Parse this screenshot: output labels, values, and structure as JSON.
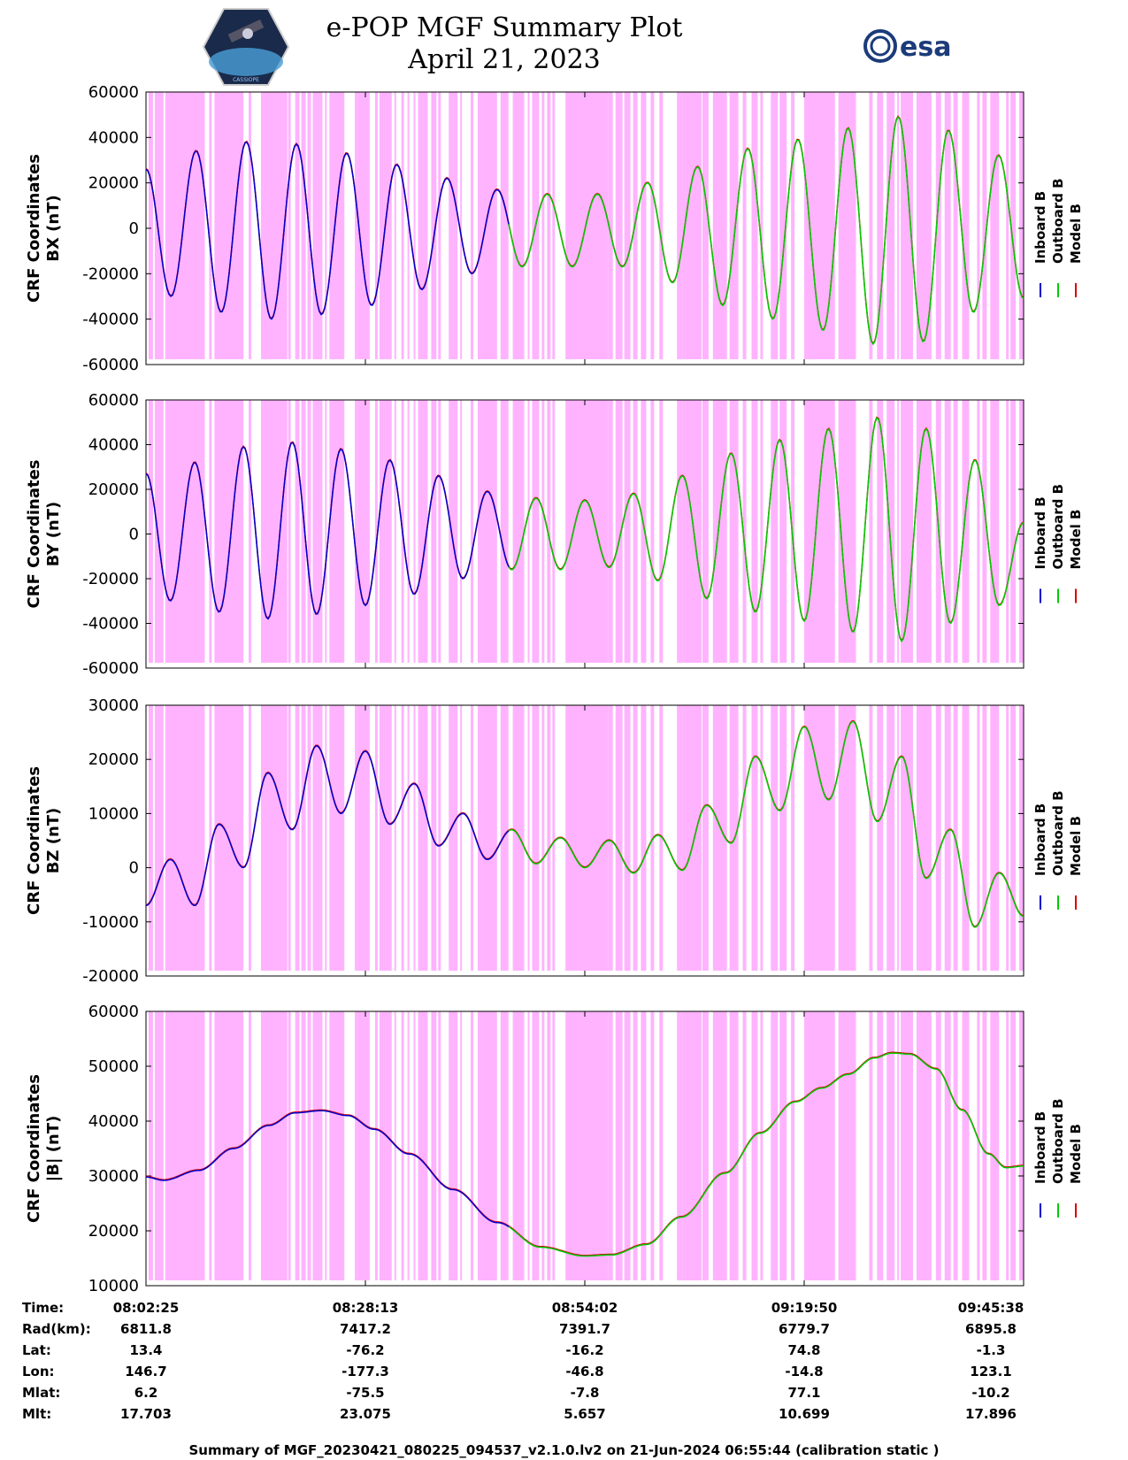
{
  "header": {
    "title_line1": "e-POP MGF Summary Plot",
    "title_line2": "April 21, 2023",
    "logo_left_text": "CASSIOPE",
    "logo_right_text": "esa"
  },
  "colors": {
    "inboard": "#0000cc",
    "outboard": "#00cc00",
    "model": "#dd0000",
    "shade": "#ffb3ff"
  },
  "chart_data": [
    {
      "type": "line",
      "ylabel": "CRF Coordinates\nBX (nT)",
      "ylabel_line1": "CRF Coordinates",
      "ylabel_line2": "BX (nT)",
      "ylim": [
        -60000,
        60000
      ],
      "yticks": [
        "60000",
        "40000",
        "20000",
        "0",
        "-20000",
        "-40000",
        "-60000"
      ],
      "legend": [
        "Inboard B",
        "Outboard B",
        "Model B"
      ],
      "series_note": "oscillating field; inboard (blue) to ~08:40 then outboard (green)",
      "peaks": [
        26000,
        -30000,
        34000,
        -37000,
        38000,
        -40000,
        37000,
        -38000,
        33000,
        -34000,
        28000,
        -27000,
        22000,
        -20000,
        17000,
        -17000,
        15000,
        -17000,
        15000,
        -17000,
        20000,
        -24000,
        27000,
        -34000,
        35000,
        -40000,
        39000,
        -45000,
        44000,
        -51000,
        49000,
        -50000,
        43000,
        -37000,
        32000,
        -31000
      ]
    },
    {
      "type": "line",
      "ylabel": "CRF Coordinates\nBY (nT)",
      "ylabel_line1": "CRF Coordinates",
      "ylabel_line2": "BY (nT)",
      "ylim": [
        -60000,
        60000
      ],
      "yticks": [
        "60000",
        "40000",
        "20000",
        "0",
        "-20000",
        "-40000",
        "-60000"
      ],
      "legend": [
        "Inboard B",
        "Outboard B",
        "Model B"
      ],
      "peaks": [
        27000,
        -30000,
        32000,
        -35000,
        39000,
        -38000,
        41000,
        -36000,
        38000,
        -32000,
        33000,
        -27000,
        26000,
        -20000,
        19000,
        -16000,
        16000,
        -16000,
        15000,
        -15000,
        18000,
        -21000,
        26000,
        -29000,
        36000,
        -35000,
        42000,
        -39000,
        47000,
        -44000,
        52000,
        -48000,
        47000,
        -40000,
        33000,
        -32000,
        5000
      ]
    },
    {
      "type": "line",
      "ylabel": "CRF Coordinates\nBZ (nT)",
      "ylabel_line1": "CRF Coordinates",
      "ylabel_line2": "BZ (nT)",
      "ylim": [
        -20000,
        30000
      ],
      "yticks": [
        "30000",
        "20000",
        "10000",
        "0",
        "-10000",
        "-20000"
      ],
      "legend": [
        "Inboard B",
        "Outboard B",
        "Model B"
      ],
      "peaks": [
        -7000,
        1500,
        -7000,
        8000,
        0,
        17500,
        7000,
        22500,
        10000,
        21500,
        8000,
        15500,
        4000,
        10000,
        1500,
        7000,
        700,
        5500,
        0,
        5000,
        -1000,
        6000,
        -500,
        11500,
        4500,
        20500,
        10500,
        26000,
        12500,
        27000,
        8500,
        20500,
        -2000,
        7000,
        -11000,
        -1000,
        -9000
      ]
    },
    {
      "type": "line",
      "ylabel": "CRF Coordinates\n|B| (nT)",
      "ylabel_line1": "CRF Coordinates",
      "ylabel_line2": "|B| (nT)",
      "ylim": [
        10000,
        60000
      ],
      "yticks": [
        "60000",
        "50000",
        "40000",
        "30000",
        "20000",
        "10000"
      ],
      "legend": [
        "Inboard B",
        "Outboard B",
        "Model B"
      ],
      "curve_points": [
        [
          0,
          29800
        ],
        [
          0.02,
          29200
        ],
        [
          0.06,
          31000
        ],
        [
          0.1,
          35000
        ],
        [
          0.14,
          39200
        ],
        [
          0.17,
          41500
        ],
        [
          0.2,
          41900
        ],
        [
          0.23,
          41000
        ],
        [
          0.26,
          38500
        ],
        [
          0.3,
          34000
        ],
        [
          0.35,
          27500
        ],
        [
          0.4,
          21500
        ],
        [
          0.45,
          17000
        ],
        [
          0.5,
          15400
        ],
        [
          0.53,
          15600
        ],
        [
          0.57,
          17500
        ],
        [
          0.61,
          22500
        ],
        [
          0.66,
          30500
        ],
        [
          0.7,
          37800
        ],
        [
          0.74,
          43500
        ],
        [
          0.77,
          46000
        ],
        [
          0.8,
          48500
        ],
        [
          0.83,
          51500
        ],
        [
          0.85,
          52400
        ],
        [
          0.87,
          52200
        ],
        [
          0.9,
          49500
        ],
        [
          0.93,
          42000
        ],
        [
          0.96,
          34000
        ],
        [
          0.98,
          31500
        ],
        [
          1,
          31800
        ]
      ]
    }
  ],
  "x_axis": {
    "shade_intervals": [
      [
        0.003,
        0.008
      ],
      [
        0.01,
        0.02
      ],
      [
        0.022,
        0.067
      ],
      [
        0.072,
        0.075
      ],
      [
        0.078,
        0.111
      ],
      [
        0.117,
        0.12
      ],
      [
        0.131,
        0.161
      ],
      [
        0.162,
        0.165
      ],
      [
        0.17,
        0.175
      ],
      [
        0.177,
        0.182
      ],
      [
        0.184,
        0.188
      ],
      [
        0.19,
        0.201
      ],
      [
        0.204,
        0.206
      ],
      [
        0.209,
        0.226
      ],
      [
        0.238,
        0.24
      ],
      [
        0.24,
        0.255
      ],
      [
        0.261,
        0.264
      ],
      [
        0.266,
        0.28
      ],
      [
        0.283,
        0.285
      ],
      [
        0.291,
        0.294
      ],
      [
        0.298,
        0.3
      ],
      [
        0.305,
        0.307
      ],
      [
        0.31,
        0.321
      ],
      [
        0.325,
        0.331
      ],
      [
        0.333,
        0.336
      ],
      [
        0.345,
        0.355
      ],
      [
        0.358,
        0.36
      ],
      [
        0.37,
        0.373
      ],
      [
        0.378,
        0.383
      ],
      [
        0.383,
        0.4
      ],
      [
        0.404,
        0.413
      ],
      [
        0.418,
        0.431
      ],
      [
        0.435,
        0.437
      ],
      [
        0.44,
        0.448
      ],
      [
        0.451,
        0.454
      ],
      [
        0.457,
        0.461
      ],
      [
        0.463,
        0.466
      ],
      [
        0.478,
        0.527
      ],
      [
        0.527,
        0.532
      ],
      [
        0.535,
        0.543
      ],
      [
        0.545,
        0.552
      ],
      [
        0.555,
        0.56
      ],
      [
        0.564,
        0.57
      ],
      [
        0.575,
        0.579
      ],
      [
        0.585,
        0.589
      ],
      [
        0.605,
        0.61
      ],
      [
        0.61,
        0.633
      ],
      [
        0.634,
        0.641
      ],
      [
        0.646,
        0.662
      ],
      [
        0.665,
        0.675
      ],
      [
        0.68,
        0.684
      ],
      [
        0.69,
        0.697
      ],
      [
        0.7,
        0.703
      ],
      [
        0.712,
        0.72
      ],
      [
        0.722,
        0.73
      ],
      [
        0.735,
        0.739
      ],
      [
        0.75,
        0.785
      ],
      [
        0.789,
        0.809
      ],
      [
        0.824,
        0.828
      ],
      [
        0.833,
        0.84
      ],
      [
        0.844,
        0.853
      ],
      [
        0.856,
        0.858
      ],
      [
        0.86,
        0.874
      ],
      [
        0.878,
        0.895
      ],
      [
        0.9,
        0.906
      ],
      [
        0.91,
        0.917
      ],
      [
        0.92,
        0.925
      ],
      [
        0.93,
        0.938
      ],
      [
        0.947,
        0.95
      ],
      [
        0.953,
        0.958
      ],
      [
        0.962,
        0.972
      ],
      [
        0.98,
        0.983
      ],
      [
        0.985,
        0.991
      ],
      [
        0.995,
        1.0
      ]
    ],
    "rows": [
      "Time:",
      "Rad(km):",
      "Lat:",
      "Lon:",
      "Mlat:",
      "Mlt:"
    ],
    "columns": [
      {
        "time": "08:02:25",
        "rad": "6811.8",
        "lat": "13.4",
        "lon": "146.7",
        "mlat": "6.2",
        "mlt": "17.703"
      },
      {
        "time": "08:28:13",
        "rad": "7417.2",
        "lat": "-76.2",
        "lon": "-177.3",
        "mlat": "-75.5",
        "mlt": "23.075"
      },
      {
        "time": "08:54:02",
        "rad": "7391.7",
        "lat": "-16.2",
        "lon": "-46.8",
        "mlat": "-7.8",
        "mlt": "5.657"
      },
      {
        "time": "09:19:50",
        "rad": "6779.7",
        "lat": "74.8",
        "lon": "-14.8",
        "mlat": "77.1",
        "mlt": "10.699"
      },
      {
        "time": "09:45:38",
        "rad": "6895.8",
        "lat": "-1.3",
        "lon": "123.1",
        "mlat": "-10.2",
        "mlt": "17.896"
      }
    ]
  },
  "footer": "Summary of MGF_20230421_080225_094537_v2.1.0.lv2 on 21-Jun-2024 06:55:44 (calibration static )"
}
